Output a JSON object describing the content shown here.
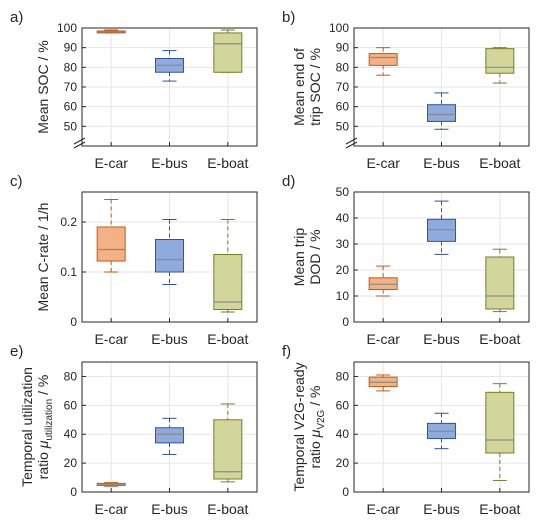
{
  "colors": {
    "E-car": {
      "fill": "#f4b183",
      "edge": "#c55a11"
    },
    "E-bus": {
      "fill": "#8faadc",
      "edge": "#2f5597"
    },
    "E-boat": {
      "fill": "#d3d69a",
      "edge": "#7a7e23"
    },
    "median": "#8a8a8a",
    "grid": "#e6e6e6",
    "axis": "#262626"
  },
  "chart_data": [
    {
      "type": "box",
      "panel": "a)",
      "ylabel_lines": [
        "Mean SOC / %"
      ],
      "categories": [
        "E-car",
        "E-bus",
        "E-boat"
      ],
      "ylim": [
        40,
        100
      ],
      "yticks": [
        50,
        60,
        70,
        80,
        90,
        100
      ],
      "axis_break": true,
      "boxes": [
        {
          "min": 97.5,
          "q1": 97.5,
          "median": 98,
          "q3": 98.5,
          "max": 99
        },
        {
          "min": 73,
          "q1": 77.5,
          "median": 81,
          "q3": 84.5,
          "max": 88.5
        },
        {
          "min": 77.5,
          "q1": 77.5,
          "median": 92,
          "q3": 97.5,
          "max": 99
        }
      ]
    },
    {
      "type": "box",
      "panel": "b)",
      "ylabel_lines": [
        "Mean end of",
        "trip SOC / %"
      ],
      "categories": [
        "E-car",
        "E-bus",
        "E-boat"
      ],
      "ylim": [
        40,
        100
      ],
      "yticks": [
        50,
        60,
        70,
        80,
        90,
        100
      ],
      "axis_break": true,
      "boxes": [
        {
          "min": 76,
          "q1": 81,
          "median": 85,
          "q3": 87,
          "max": 90
        },
        {
          "min": 48.5,
          "q1": 52.5,
          "median": 56,
          "q3": 61,
          "max": 67
        },
        {
          "min": 72,
          "q1": 77,
          "median": 80,
          "q3": 89.5,
          "max": 90
        }
      ]
    },
    {
      "type": "box",
      "panel": "c)",
      "ylabel_lines": [
        "Mean C-rate / 1/h"
      ],
      "categories": [
        "E-car",
        "E-bus",
        "E-boat"
      ],
      "ylim": [
        0,
        0.26
      ],
      "yticks": [
        0,
        0.1,
        0.2
      ],
      "ytick_labels": [
        "0",
        "0.1",
        "0.2"
      ],
      "axis_break": false,
      "boxes": [
        {
          "min": 0.1,
          "q1": 0.122,
          "median": 0.145,
          "q3": 0.19,
          "max": 0.245
        },
        {
          "min": 0.075,
          "q1": 0.1,
          "median": 0.125,
          "q3": 0.165,
          "max": 0.205
        },
        {
          "min": 0.02,
          "q1": 0.025,
          "median": 0.04,
          "q3": 0.135,
          "max": 0.205
        }
      ]
    },
    {
      "type": "box",
      "panel": "d)",
      "ylabel_lines": [
        "Mean trip",
        "DOD / %"
      ],
      "categories": [
        "E-car",
        "E-bus",
        "E-boat"
      ],
      "ylim": [
        0,
        50
      ],
      "yticks": [
        0,
        10,
        20,
        30,
        40,
        50
      ],
      "axis_break": false,
      "boxes": [
        {
          "min": 10,
          "q1": 12.5,
          "median": 14.5,
          "q3": 17,
          "max": 21.5
        },
        {
          "min": 26,
          "q1": 31,
          "median": 35.5,
          "q3": 39.5,
          "max": 46.5
        },
        {
          "min": 4,
          "q1": 5,
          "median": 10,
          "q3": 25,
          "max": 28
        }
      ]
    },
    {
      "type": "box",
      "panel": "e)",
      "ylabel_lines": [
        "Temporal utilization",
        "ratio μ_utilization / %"
      ],
      "ylabel_rich": {
        "line1": "Temporal utilization",
        "pre": "ratio ",
        "mu": "μ",
        "sub": "utilization",
        "post": " / %"
      },
      "categories": [
        "E-car",
        "E-bus",
        "E-boat"
      ],
      "ylim": [
        0,
        90
      ],
      "yticks": [
        0,
        20,
        40,
        60,
        80
      ],
      "axis_break": false,
      "boxes": [
        {
          "min": 4,
          "q1": 4.5,
          "median": 5,
          "q3": 6,
          "max": 6.5
        },
        {
          "min": 26,
          "q1": 34,
          "median": 40,
          "q3": 44.5,
          "max": 51
        },
        {
          "min": 7,
          "q1": 9,
          "median": 14,
          "q3": 50,
          "max": 61
        }
      ]
    },
    {
      "type": "box",
      "panel": "f)",
      "ylabel_lines": [
        "Temporal V2G-ready",
        "ratio μ_V2G / %"
      ],
      "ylabel_rich": {
        "line1": "Temporal V2G-ready",
        "pre": "ratio ",
        "mu": "μ",
        "sub": "V2G",
        "post": " / %"
      },
      "categories": [
        "E-car",
        "E-bus",
        "E-boat"
      ],
      "ylim": [
        0,
        90
      ],
      "yticks": [
        0,
        20,
        40,
        60,
        80
      ],
      "axis_break": false,
      "boxes": [
        {
          "min": 70,
          "q1": 73,
          "median": 76,
          "q3": 79.5,
          "max": 81
        },
        {
          "min": 30,
          "q1": 37,
          "median": 42,
          "q3": 47.5,
          "max": 54.5
        },
        {
          "min": 8,
          "q1": 27,
          "median": 36,
          "q3": 69,
          "max": 75
        }
      ]
    }
  ]
}
